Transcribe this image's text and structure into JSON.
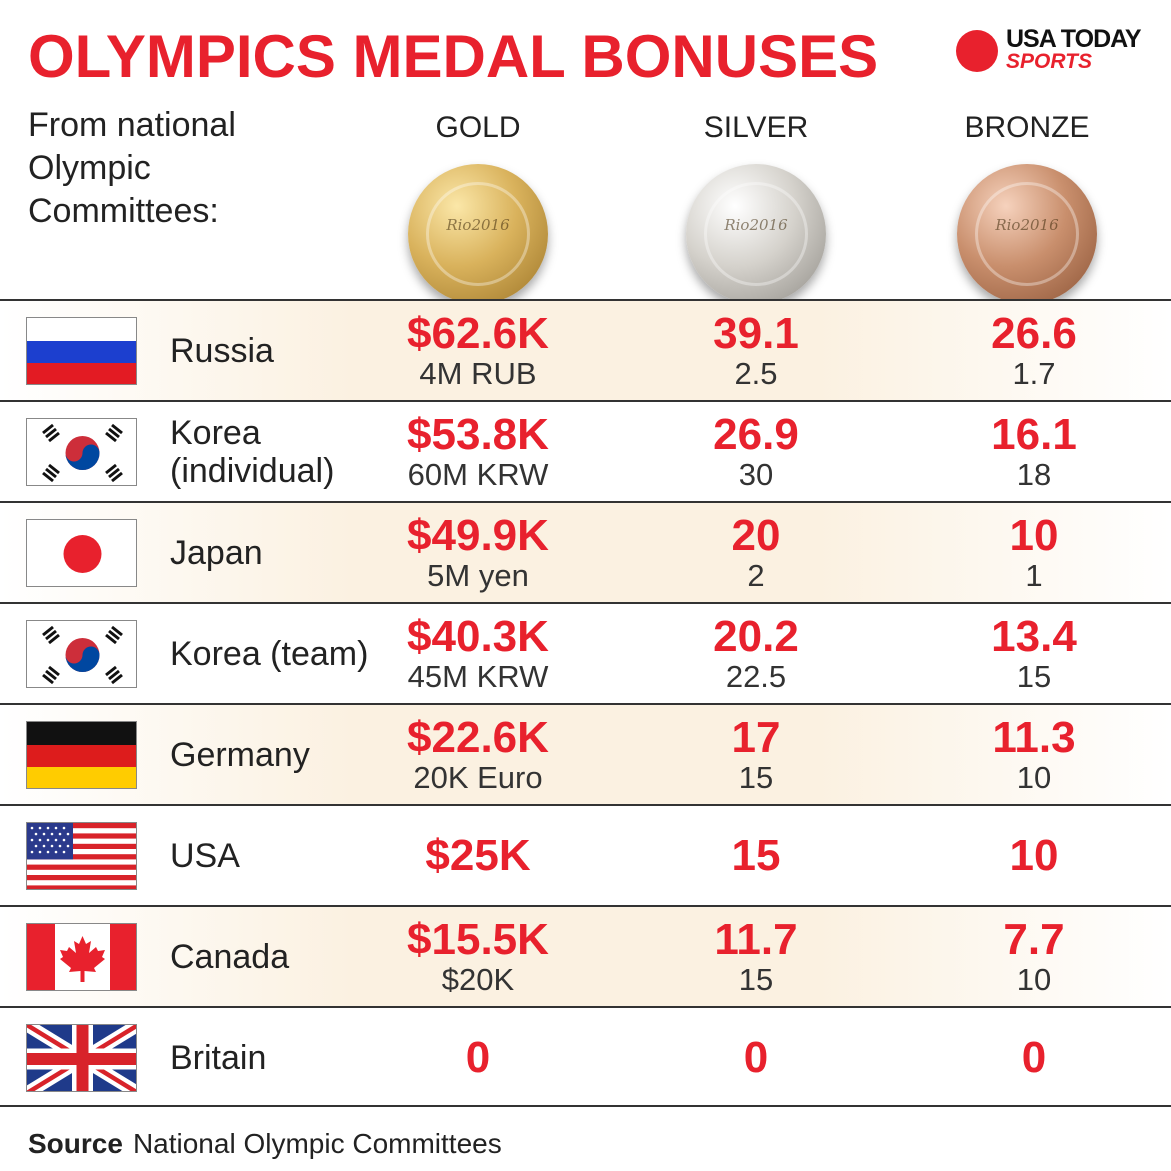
{
  "title": "OLYMPICS MEDAL BONUSES",
  "logo": {
    "top": "USA TODAY",
    "bottom": "SPORTS"
  },
  "subtitle": "From national Olympic Committees:",
  "medals": {
    "gold": "GOLD",
    "silver": "SILVER",
    "bronze": "BRONZE",
    "emblem": "Rio2016"
  },
  "rows": [
    {
      "country": "Russia",
      "flag": "russia",
      "gold": "$62.6K",
      "gold_local": "4M RUB",
      "silver": "39.1",
      "silver_local": "2.5",
      "bronze": "26.6",
      "bronze_local": "1.7"
    },
    {
      "country": "Korea (individual)",
      "flag": "korea",
      "gold": "$53.8K",
      "gold_local": "60M KRW",
      "silver": "26.9",
      "silver_local": "30",
      "bronze": "16.1",
      "bronze_local": "18"
    },
    {
      "country": "Japan",
      "flag": "japan",
      "gold": "$49.9K",
      "gold_local": "5M yen",
      "silver": "20",
      "silver_local": "2",
      "bronze": "10",
      "bronze_local": "1"
    },
    {
      "country": "Korea (team)",
      "flag": "korea",
      "gold": "$40.3K",
      "gold_local": "45M KRW",
      "silver": "20.2",
      "silver_local": "22.5",
      "bronze": "13.4",
      "bronze_local": "15"
    },
    {
      "country": "Germany",
      "flag": "germany",
      "gold": "$22.6K",
      "gold_local": "20K Euro",
      "silver": "17",
      "silver_local": "15",
      "bronze": "11.3",
      "bronze_local": "10"
    },
    {
      "country": "USA",
      "flag": "usa",
      "gold": "$25K",
      "gold_local": "",
      "silver": "15",
      "silver_local": "",
      "bronze": "10",
      "bronze_local": ""
    },
    {
      "country": "Canada",
      "flag": "canada",
      "gold": "$15.5K",
      "gold_local": "$20K",
      "silver": "11.7",
      "silver_local": "15",
      "bronze": "7.7",
      "bronze_local": "10"
    },
    {
      "country": "Britain",
      "flag": "britain",
      "gold": "0",
      "gold_local": "",
      "silver": "0",
      "silver_local": "",
      "bronze": "0",
      "bronze_local": ""
    }
  ],
  "source": {
    "label": "Source",
    "text": "National Olympic Committees"
  },
  "colors": {
    "accent": "#e8212d",
    "text": "#222222",
    "row_shade": "#fbf1e1"
  }
}
